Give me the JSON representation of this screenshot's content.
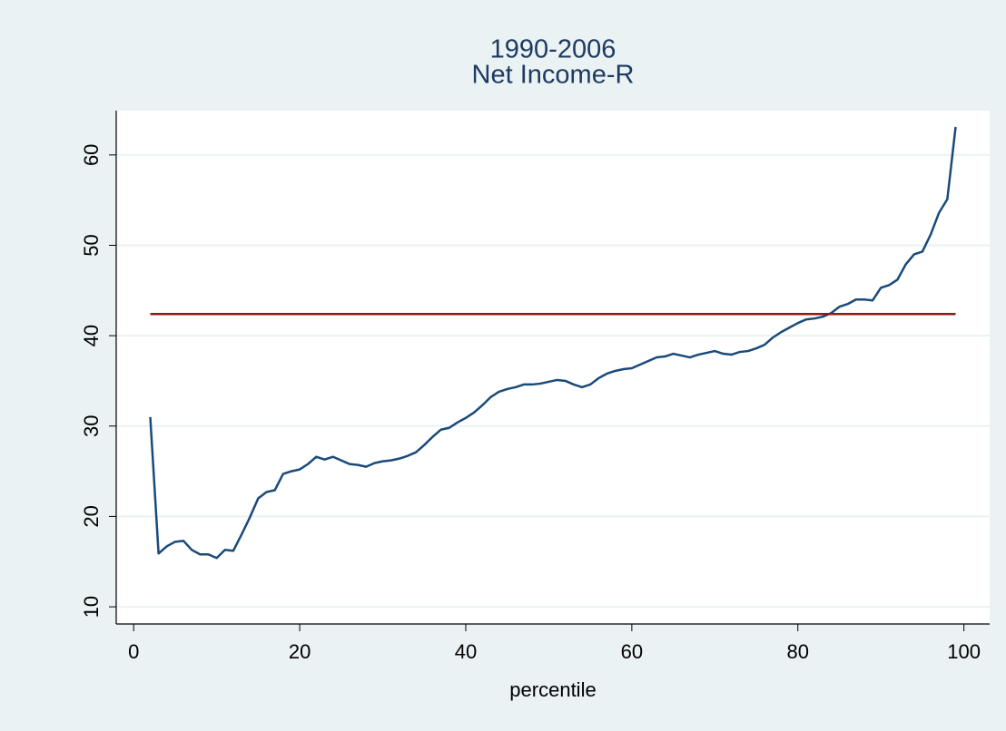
{
  "chart_data": {
    "type": "line",
    "title": "1990-2006",
    "subtitle": "Net Income-R",
    "x_label": "percentile",
    "xlim": [
      -2.1,
      103.1
    ],
    "xticks": [
      0,
      20,
      40,
      60,
      80,
      100
    ],
    "ylim": [
      8.1,
      64.9
    ],
    "yticks": [
      10,
      20,
      30,
      40,
      50,
      60
    ],
    "grid": true,
    "series": [
      {
        "color": "#1a4a7a",
        "x": [
          2,
          3,
          4,
          5,
          6,
          7,
          8,
          9,
          10,
          11,
          12,
          13,
          14,
          15,
          16,
          17,
          18,
          19,
          20,
          21,
          22,
          23,
          24,
          25,
          26,
          27,
          28,
          29,
          30,
          31,
          32,
          33,
          34,
          35,
          36,
          37,
          38,
          39,
          40,
          41,
          42,
          43,
          44,
          45,
          46,
          47,
          48,
          49,
          50,
          51,
          52,
          53,
          54,
          55,
          56,
          57,
          58,
          59,
          60,
          61,
          62,
          63,
          64,
          65,
          66,
          67,
          68,
          69,
          70,
          71,
          72,
          73,
          74,
          75,
          76,
          77,
          78,
          79,
          80,
          81,
          82,
          83,
          84,
          85,
          86,
          87,
          88,
          89,
          90,
          91,
          92,
          93,
          94,
          95,
          96,
          97,
          98,
          99
        ],
        "values": [
          31.0,
          15.9,
          16.7,
          17.2,
          17.3,
          16.3,
          15.8,
          15.8,
          15.4,
          16.3,
          16.2,
          18.0,
          19.9,
          22.0,
          22.7,
          22.9,
          24.7,
          25.0,
          25.2,
          25.8,
          26.6,
          26.3,
          26.6,
          26.2,
          25.8,
          25.7,
          25.5,
          25.9,
          26.1,
          26.2,
          26.4,
          26.7,
          27.1,
          27.9,
          28.8,
          29.6,
          29.8,
          30.4,
          30.9,
          31.5,
          32.3,
          33.2,
          33.8,
          34.1,
          34.3,
          34.6,
          34.6,
          34.7,
          34.9,
          35.1,
          35.0,
          34.6,
          34.3,
          34.6,
          35.3,
          35.8,
          36.1,
          36.3,
          36.4,
          36.8,
          37.2,
          37.6,
          37.7,
          38.0,
          37.8,
          37.6,
          37.9,
          38.1,
          38.3,
          38.0,
          37.9,
          38.2,
          38.3,
          38.6,
          39.0,
          39.8,
          40.4,
          40.9,
          41.4,
          41.8,
          41.9,
          42.1,
          42.5,
          43.2,
          43.5,
          44.0,
          44.0,
          43.9,
          45.3,
          45.6,
          46.2,
          47.9,
          49.0,
          49.3,
          51.2,
          53.6,
          55.1,
          63.1
        ]
      },
      {
        "color": "#8b1a1a",
        "x": [
          2,
          99
        ],
        "values": [
          42.4,
          42.4
        ]
      }
    ]
  }
}
